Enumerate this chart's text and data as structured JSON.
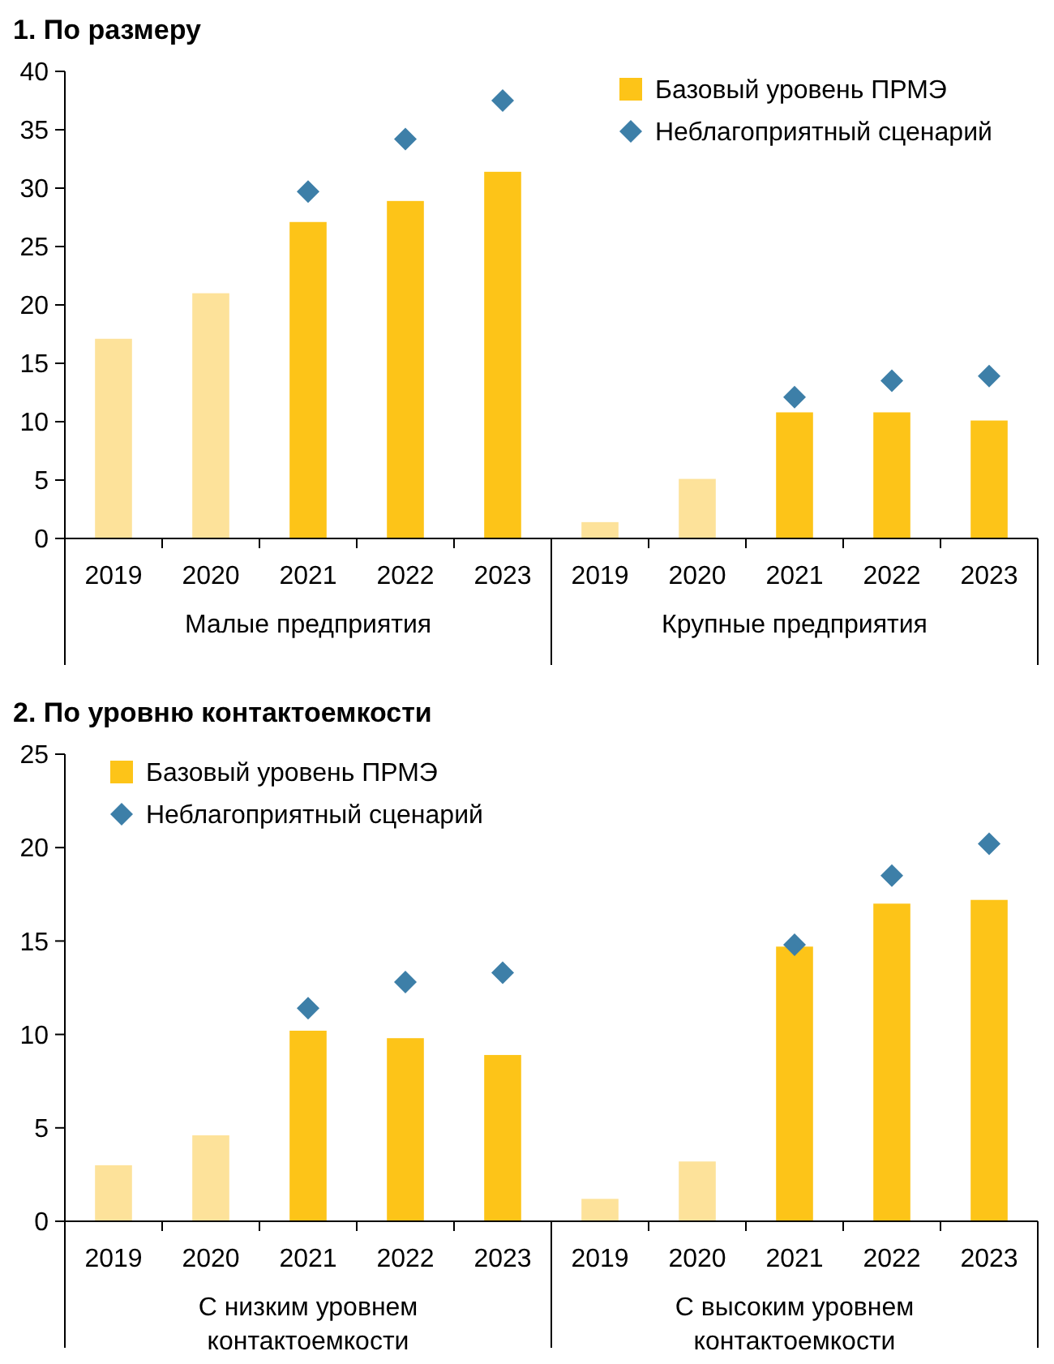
{
  "chart_data": [
    {
      "type": "bar",
      "title": "1. По размеру",
      "categories": [
        "2019",
        "2020",
        "2021",
        "2022",
        "2023",
        "2019",
        "2020",
        "2021",
        "2022",
        "2023"
      ],
      "annotations": [
        "Малые предприятия",
        "Крупные предприятия"
      ],
      "ylim": [
        0,
        40
      ],
      "yticks": [
        0,
        5,
        10,
        15,
        20,
        25,
        30,
        35,
        40
      ],
      "legend": "top right",
      "grid": false,
      "series": [
        {
          "name": "Базовый уровень ПРМЭ",
          "color": "#fdc418",
          "colors": [
            "#fde29a",
            "#fde29a",
            "#fdc418",
            "#fdc418",
            "#fdc418",
            "#fde29a",
            "#fde29a",
            "#fdc418",
            "#fdc418",
            "#fdc418"
          ],
          "values": [
            17.1,
            21.0,
            27.1,
            28.9,
            31.4,
            1.4,
            5.1,
            10.8,
            10.8,
            10.1
          ]
        },
        {
          "type": "scatter",
          "name": "Неблагоприятный сценарий",
          "color": "#3d7fa8",
          "marker": "diamond",
          "values": [
            null,
            null,
            29.7,
            34.2,
            37.5,
            null,
            null,
            12.1,
            13.5,
            13.9
          ]
        }
      ]
    },
    {
      "type": "bar",
      "title": "2. По уровню контактоемкости",
      "categories": [
        "2019",
        "2020",
        "2021",
        "2022",
        "2023",
        "2019",
        "2020",
        "2021",
        "2022",
        "2023"
      ],
      "annotations": [
        "С низким уровнем контактоемкости",
        "С высоким уровнем контактоемкости"
      ],
      "ylim": [
        0,
        25
      ],
      "yticks": [
        0,
        5,
        10,
        15,
        20,
        25
      ],
      "legend": "top left",
      "grid": false,
      "series": [
        {
          "name": "Базовый уровень ПРМЭ",
          "color": "#fdc418",
          "colors": [
            "#fde29a",
            "#fde29a",
            "#fdc418",
            "#fdc418",
            "#fdc418",
            "#fde29a",
            "#fde29a",
            "#fdc418",
            "#fdc418",
            "#fdc418"
          ],
          "values": [
            3.0,
            4.6,
            10.2,
            9.8,
            8.9,
            1.2,
            3.2,
            14.7,
            17.0,
            17.2
          ]
        },
        {
          "type": "scatter",
          "name": "Неблагоприятный сценарий",
          "color": "#3d7fa8",
          "marker": "diamond",
          "values": [
            null,
            null,
            11.4,
            12.8,
            13.3,
            null,
            null,
            14.8,
            18.5,
            20.2
          ]
        }
      ]
    }
  ]
}
